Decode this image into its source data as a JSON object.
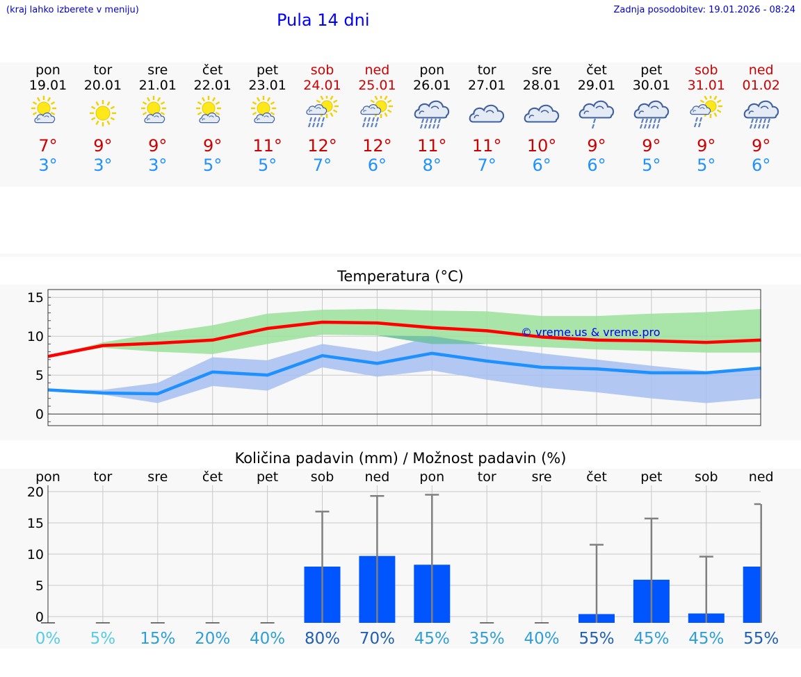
{
  "header": {
    "menu_hint": "(kraj lahko izberete v meniju)",
    "title": "Pula 14 dni",
    "last_update": "Zadnja posodobitev: 19.01.2026 - 08:24"
  },
  "colors": {
    "max_temp": "#cc0000",
    "min_temp": "#1e90ff",
    "weekend": "#cc0000",
    "title": "#0000ff",
    "precip_bar": "#0055ff"
  },
  "days": [
    {
      "name": "pon",
      "date": "19.01",
      "weekend": false,
      "icon": "sun-cloud-icon",
      "tmax": "7°",
      "tmin": "3°"
    },
    {
      "name": "tor",
      "date": "20.01",
      "weekend": false,
      "icon": "sun-icon",
      "tmax": "9°",
      "tmin": "3°"
    },
    {
      "name": "sre",
      "date": "21.01",
      "weekend": false,
      "icon": "sun-cloud-icon",
      "tmax": "9°",
      "tmin": "3°"
    },
    {
      "name": "čet",
      "date": "22.01",
      "weekend": false,
      "icon": "sun-cloud-icon",
      "tmax": "9°",
      "tmin": "5°"
    },
    {
      "name": "pet",
      "date": "23.01",
      "weekend": false,
      "icon": "sun-cloud-icon",
      "tmax": "11°",
      "tmin": "5°"
    },
    {
      "name": "sob",
      "date": "24.01",
      "weekend": true,
      "icon": "sun-cloud-rain-icon",
      "tmax": "12°",
      "tmin": "7°"
    },
    {
      "name": "ned",
      "date": "25.01",
      "weekend": true,
      "icon": "sun-cloud-rain-icon",
      "tmax": "12°",
      "tmin": "6°"
    },
    {
      "name": "pon",
      "date": "26.01",
      "weekend": false,
      "icon": "cloud-rain-icon",
      "tmax": "11°",
      "tmin": "8°"
    },
    {
      "name": "tor",
      "date": "27.01",
      "weekend": false,
      "icon": "cloud-icon",
      "tmax": "11°",
      "tmin": "7°"
    },
    {
      "name": "sre",
      "date": "28.01",
      "weekend": false,
      "icon": "cloud-icon",
      "tmax": "10°",
      "tmin": "6°"
    },
    {
      "name": "čet",
      "date": "29.01",
      "weekend": false,
      "icon": "cloud-light-rain-icon",
      "tmax": "9°",
      "tmin": "6°"
    },
    {
      "name": "pet",
      "date": "30.01",
      "weekend": false,
      "icon": "cloud-rain-icon",
      "tmax": "9°",
      "tmin": "5°"
    },
    {
      "name": "sob",
      "date": "31.01",
      "weekend": true,
      "icon": "sun-cloud-light-rain-icon",
      "tmax": "9°",
      "tmin": "5°"
    },
    {
      "name": "ned",
      "date": "01.02",
      "weekend": true,
      "icon": "cloud-rain-icon",
      "tmax": "9°",
      "tmin": "6°"
    }
  ],
  "chart_data": [
    {
      "type": "line",
      "title": "Temperatura (°C)",
      "ylim": [
        -1.5,
        16
      ],
      "yticks": [
        0,
        5,
        10,
        15
      ],
      "x": [
        0,
        1,
        2,
        3,
        4,
        5,
        6,
        7,
        8,
        9,
        10,
        11,
        12,
        13
      ],
      "watermark": "© vreme.us & vreme.pro",
      "series": [
        {
          "name": "max",
          "color": "#ff0000",
          "values": [
            7.4,
            8.8,
            9.1,
            9.5,
            11.0,
            11.8,
            11.7,
            11.1,
            10.7,
            9.9,
            9.5,
            9.4,
            9.2,
            9.5
          ]
        },
        {
          "name": "min",
          "color": "#1e90ff",
          "values": [
            3.1,
            2.7,
            2.6,
            5.4,
            5.0,
            7.5,
            6.5,
            7.8,
            6.8,
            6.0,
            5.8,
            5.3,
            5.3,
            5.9
          ]
        }
      ],
      "bands": [
        {
          "name": "max-range",
          "color": "#9be09b",
          "low": [
            7.4,
            8.5,
            8.0,
            7.7,
            9.0,
            10.2,
            10.1,
            9.0,
            9.0,
            8.6,
            8.3,
            8.1,
            7.9,
            7.9
          ],
          "high": [
            7.4,
            9.2,
            10.4,
            11.4,
            12.9,
            13.4,
            13.5,
            13.3,
            13.2,
            12.6,
            12.6,
            12.9,
            13.1,
            13.5
          ]
        },
        {
          "name": "min-range",
          "color": "#a6bff2",
          "low": [
            3.1,
            2.5,
            1.4,
            3.6,
            3.0,
            6.0,
            4.8,
            5.6,
            4.4,
            3.4,
            2.8,
            2.0,
            1.4,
            2.0
          ],
          "high": [
            3.1,
            3.1,
            4.0,
            7.3,
            6.9,
            9.0,
            8.0,
            10.0,
            8.7,
            7.8,
            7.0,
            6.2,
            5.5,
            5.7
          ]
        }
      ]
    },
    {
      "type": "bar",
      "title": "Količina padavin (mm) / Možnost padavin (%)",
      "ylim": [
        -1,
        21
      ],
      "yticks": [
        0,
        5,
        10,
        15,
        20
      ],
      "categories": [
        "pon",
        "tor",
        "sre",
        "čet",
        "pet",
        "sob",
        "ned",
        "pon",
        "tor",
        "sre",
        "čet",
        "pet",
        "sob",
        "ned"
      ],
      "values": [
        0,
        0,
        0,
        0,
        0,
        8.0,
        9.7,
        8.3,
        0,
        0,
        0.4,
        5.9,
        0.5,
        8.0
      ],
      "errors_high": [
        0,
        0,
        0,
        0,
        0,
        16.8,
        19.3,
        19.5,
        0,
        0,
        11.5,
        15.7,
        9.6,
        18.0
      ],
      "probabilities": [
        "0%",
        "5%",
        "15%",
        "20%",
        "40%",
        "80%",
        "70%",
        "45%",
        "35%",
        "40%",
        "55%",
        "45%",
        "45%",
        "55%"
      ],
      "prob_colors": [
        "#55cce6",
        "#55cce6",
        "#2e9fd6",
        "#2e9fd6",
        "#2e9fd6",
        "#1f5fb5",
        "#1f5fb5",
        "#2e9fd6",
        "#2e9fd6",
        "#2e9fd6",
        "#1f5fb5",
        "#2e9fd6",
        "#2e9fd6",
        "#1f5fb5"
      ]
    }
  ]
}
